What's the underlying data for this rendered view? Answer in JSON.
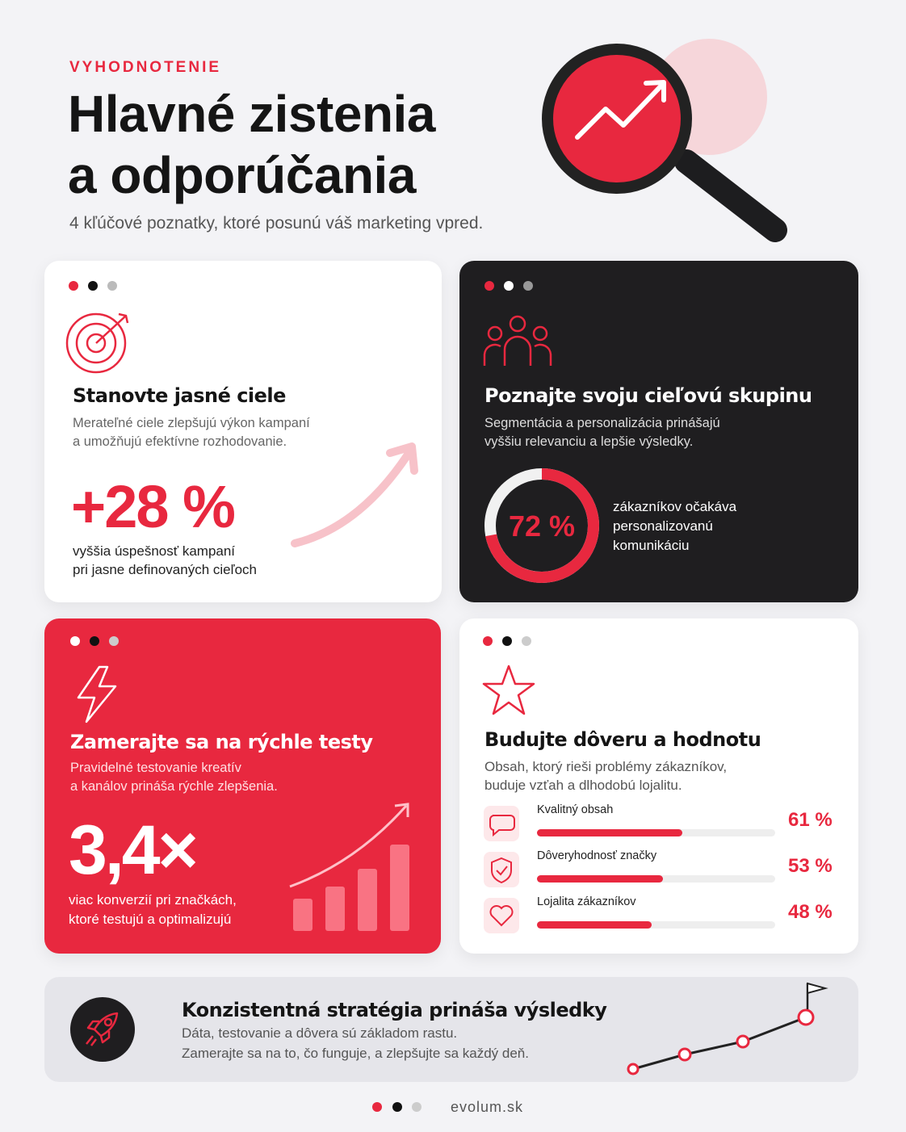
{
  "header": {
    "eyebrow": "VYHODNOTENIE",
    "title_lines": [
      "Hlavné zistenia",
      "a odporúčania"
    ],
    "subtitle": "4 kľúčové poznatky, ktoré posunú váš marketing vpred."
  },
  "cards": [
    {
      "title": "Stanovte jasné ciele",
      "text_lines": [
        "Merateľné ciele zlepšujú výkon kampaní",
        "a umožňujú efektívne rozhodovanie."
      ],
      "figure": "+28 %",
      "caption_lines": [
        "vyššia úspešnosť kampaní",
        "pri jasne definovaných cieľoch"
      ]
    },
    {
      "title": "Poznajte svoju cieľovú skupinu",
      "text_lines": [
        "Segmentácia a personalizácia prinášajú",
        "vyššiu relevanciu a lepšie výsledky."
      ],
      "stat": {
        "value": 72,
        "label": "72 %"
      },
      "lim": [
        0,
        100
      ],
      "caption_lines": [
        "zákazníkov očakáva",
        "personalizovanú",
        "komunikáciu"
      ]
    },
    {
      "title": "Zamerajte sa na rýchle testy",
      "text_lines": [
        "Pravidelné testovanie kreatív",
        "a kanálov prináša rýchle zlepšenia."
      ],
      "figure": "3,4×",
      "caption_lines": [
        "viac konverzií pri značkách,",
        "ktoré testujú a optimalizujú"
      ]
    },
    {
      "title": "Budujte dôveru a hodnotu",
      "text_lines": [
        "Obsah, ktorý rieši problémy zákazníkov,",
        "buduje vzťah a dlhodobú lojalitu."
      ],
      "lim": [
        0,
        100
      ],
      "bars": [
        {
          "label": "Kvalitný obsah",
          "value": 61,
          "value_label": "61 %"
        },
        {
          "label": "Dôveryhodnosť značky",
          "value": 53,
          "value_label": "53 %"
        },
        {
          "label": "Lojalita zákazníkov",
          "value": 48,
          "value_label": "48 %"
        }
      ]
    }
  ],
  "banner": {
    "title": "Konzistentná stratégia prináša výsledky",
    "text_lines": [
      "Dáta, testovanie a dôvera sú základom rastu.",
      "Zamerajte sa na to, čo funguje, a zlepšujte sa každý deň."
    ]
  },
  "footer": {
    "site": "evolum.sk"
  }
}
